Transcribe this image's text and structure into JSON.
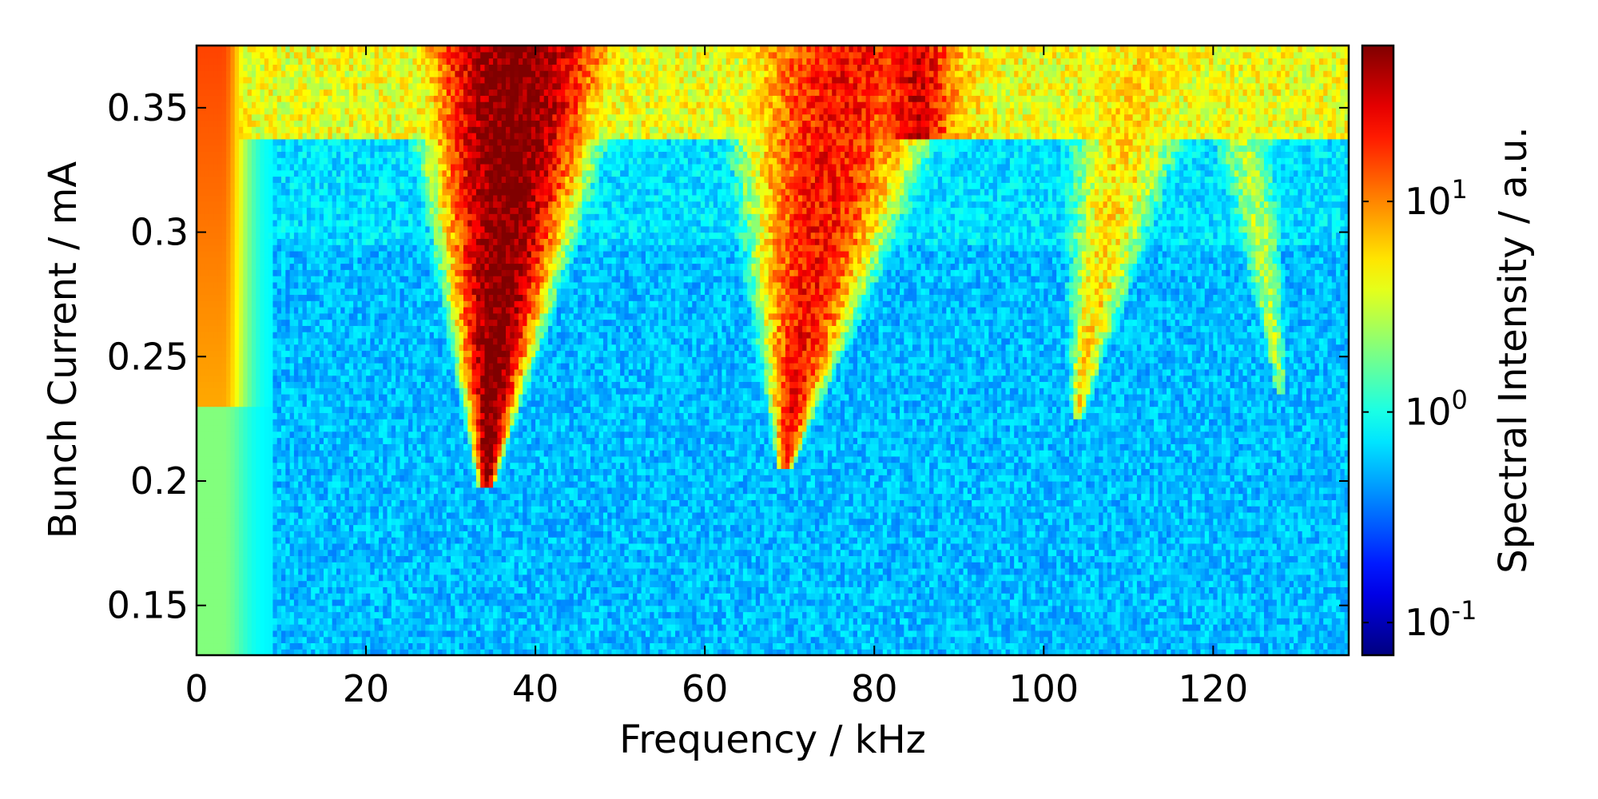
{
  "chart_data": {
    "type": "heatmap",
    "title": "",
    "xlabel": "Frequency / kHz",
    "ylabel": "Bunch Current / mA",
    "colorbar_label": "Spectral Intensity / a.u.",
    "colormap": "jet",
    "color_scale": "log",
    "xlim": [
      0,
      136
    ],
    "ylim": [
      0.13,
      0.375
    ],
    "clim": [
      0.07,
      55
    ],
    "x_ticks": [
      0,
      20,
      40,
      60,
      80,
      100,
      120
    ],
    "x_tick_labels": [
      "0",
      "20",
      "40",
      "60",
      "80",
      "100",
      "120"
    ],
    "y_ticks": [
      0.15,
      0.2,
      0.25,
      0.3,
      0.35
    ],
    "y_tick_labels": [
      "0.15",
      "0.2",
      "0.25",
      "0.3",
      "0.35"
    ],
    "colorbar_ticks": [
      {
        "value": 0.1,
        "base": "10",
        "exp": "-1"
      },
      {
        "value": 1,
        "base": "10",
        "exp": "0"
      },
      {
        "value": 10,
        "base": "10",
        "exp": "1"
      }
    ],
    "background_level": 0.55,
    "low_frequency_band": {
      "x_range": [
        0,
        3
      ],
      "level": 5
    },
    "thresholds_mA": [
      0.294,
      0.337
    ],
    "features": [
      {
        "name": "m1",
        "x_at_threshold": 34.2,
        "onset_current": 0.198,
        "x_at_top": 38,
        "width_at_top": 11,
        "peak_level": 60
      },
      {
        "name": "m2",
        "x_at_threshold": 69.5,
        "onset_current": 0.205,
        "x_at_top": 77,
        "width_at_top": 14,
        "peak_level": 22
      },
      {
        "name": "m3",
        "x_at_threshold": 104,
        "onset_current": 0.225,
        "x_at_top": 112,
        "width_at_top": 10,
        "peak_level": 5.5
      },
      {
        "name": "m4",
        "x_at_threshold": 128,
        "onset_current": 0.235,
        "x_at_top": 122,
        "width_at_top": 6,
        "peak_level": 2.6
      }
    ]
  }
}
